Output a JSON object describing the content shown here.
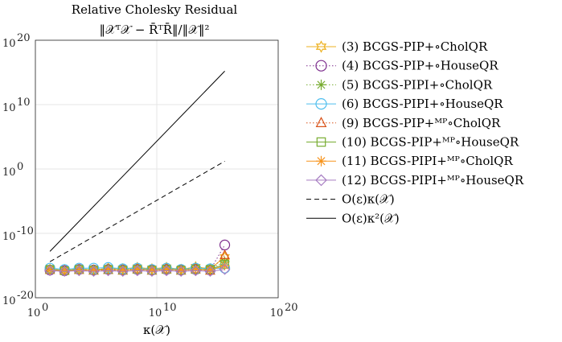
{
  "chart_data": {
    "type": "line",
    "title": "Relative Cholesky Residual",
    "subtitle": "‖𝒳ᵀ𝒳 − R̄ᵀR̄‖/‖𝒳‖²",
    "xlabel": "κ(𝒳)",
    "ylabel": "",
    "xscale": "log",
    "yscale": "log",
    "xlim_exp": [
      0,
      20
    ],
    "ylim_exp": [
      -20,
      20
    ],
    "x_ticks": [
      {
        "base": "10",
        "exp": "0"
      },
      {
        "base": "10",
        "exp": "10"
      },
      {
        "base": "10",
        "exp": "20"
      }
    ],
    "y_ticks": [
      {
        "base": "10",
        "exp": "-20"
      },
      {
        "base": "10",
        "exp": "-10"
      },
      {
        "base": "10",
        "exp": "0"
      },
      {
        "base": "10",
        "exp": "10"
      },
      {
        "base": "10",
        "exp": "20"
      }
    ],
    "grid": true,
    "legend_position": "outside-right",
    "x_log10": [
      1.2,
      2.4,
      3.6,
      4.8,
      6.0,
      7.2,
      8.4,
      9.6,
      10.8,
      12.0,
      13.2,
      14.4,
      15.6
    ],
    "series": [
      {
        "name": "(3) BCGS-PIP+∘CholQR",
        "color": "#EDB120",
        "marker": "hexagram",
        "linestyle": "solid",
        "y_log10": [
          -15.6,
          -15.7,
          -15.6,
          -15.7,
          -15.4,
          -15.5,
          -15.3,
          -15.5,
          -15.3,
          -15.6,
          -15.2,
          -15.5,
          -13.7
        ]
      },
      {
        "name": "(4) BCGS-PIP+∘HouseQR",
        "color": "#7E2F8E",
        "marker": "circle",
        "linestyle": "dotted",
        "y_log10": [
          -15.7,
          -15.8,
          -15.6,
          -15.7,
          -15.6,
          -15.7,
          -15.6,
          -15.7,
          -15.6,
          -15.7,
          -15.6,
          -15.7,
          -11.8
        ]
      },
      {
        "name": "(5) BCGS-PIPI+∘CholQR",
        "color": "#77AC30",
        "marker": "asterisk",
        "linestyle": "dotted",
        "y_log10": [
          -15.6,
          -15.7,
          -15.6,
          -15.6,
          -15.5,
          -15.6,
          -15.5,
          -15.6,
          -15.4,
          -15.6,
          -15.3,
          -15.5,
          -14.4
        ]
      },
      {
        "name": "(6) BCGS-PIPI+∘HouseQR",
        "color": "#4DBEEE",
        "marker": "circle",
        "linestyle": "solid",
        "y_log10": [
          -15.4,
          -15.6,
          -15.4,
          -15.4,
          -15.3,
          -15.5,
          -15.4,
          -15.6,
          -15.4,
          -15.6,
          -15.4,
          -15.5,
          -15.4
        ]
      },
      {
        "name": "(9) BCGS-PIP+ᴹᴾ∘CholQR",
        "color": "#D95319",
        "marker": "triangle",
        "linestyle": "dotted",
        "y_log10": [
          -15.7,
          -15.8,
          -15.7,
          -15.8,
          -15.7,
          -15.8,
          -15.6,
          -15.8,
          -15.6,
          -15.8,
          -15.6,
          -15.8,
          -13.4
        ]
      },
      {
        "name": "(10) BCGS-PIP+ᴹᴾ∘HouseQR",
        "color": "#77AC30",
        "marker": "square",
        "linestyle": "solid",
        "y_log10": [
          -15.6,
          -15.8,
          -15.6,
          -15.7,
          -15.6,
          -15.7,
          -15.6,
          -15.7,
          -15.6,
          -15.7,
          -15.6,
          -15.6,
          -14.8
        ]
      },
      {
        "name": "(11) BCGS-PIPI+ᴹᴾ∘CholQR",
        "color": "#F7941D",
        "marker": "asterisk",
        "linestyle": "solid",
        "y_log10": [
          -15.7,
          -15.8,
          -15.7,
          -15.7,
          -15.6,
          -15.7,
          -15.6,
          -15.7,
          -15.6,
          -15.7,
          -15.6,
          -15.7,
          -15.0
        ]
      },
      {
        "name": "(12) BCGS-PIPI+ᴹᴾ∘HouseQR",
        "color": "#A77DC2",
        "marker": "diamond",
        "linestyle": "solid",
        "y_log10": [
          -15.8,
          -15.9,
          -15.8,
          -15.9,
          -15.8,
          -15.9,
          -15.8,
          -15.9,
          -15.8,
          -15.9,
          -15.8,
          -15.9,
          -15.6
        ]
      }
    ],
    "reference_lines": [
      {
        "name": "O(ε)κ(𝒳)",
        "color": "#000000",
        "linestyle": "dashed",
        "x_log10": [
          1.2,
          15.6
        ],
        "y_log10": [
          -14.4,
          1.2
        ]
      },
      {
        "name": "O(ε)κ²(𝒳)",
        "color": "#000000",
        "linestyle": "solid",
        "x_log10": [
          1.2,
          15.6
        ],
        "y_log10": [
          -12.8,
          15.2
        ]
      }
    ]
  }
}
